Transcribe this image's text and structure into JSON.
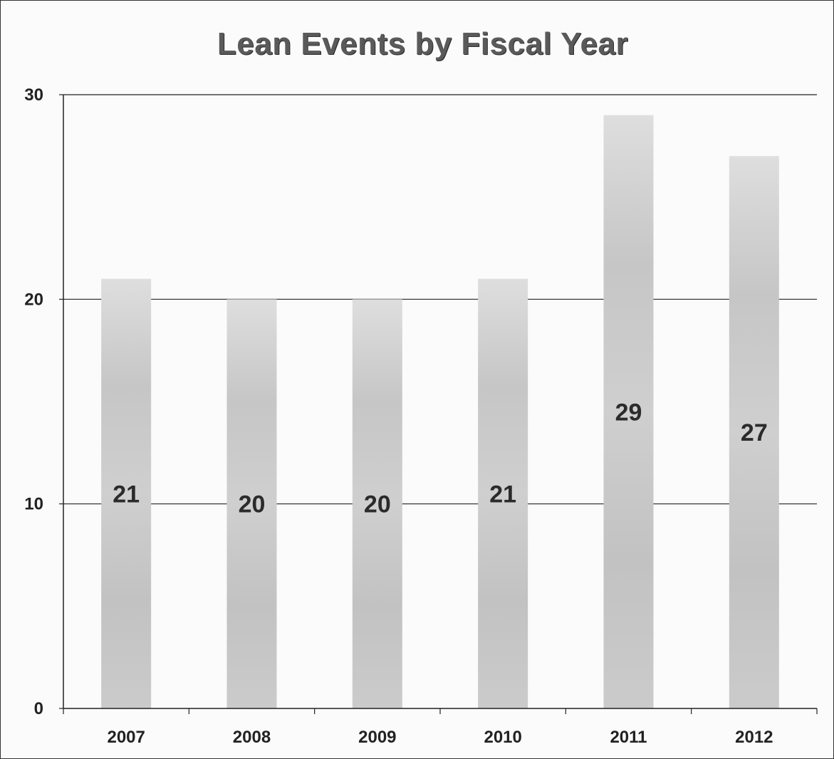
{
  "chart_data": {
    "type": "bar",
    "title": "Lean Events by Fiscal Year",
    "xlabel": "",
    "ylabel": "",
    "categories": [
      "2007",
      "2008",
      "2009",
      "2010",
      "2011",
      "2012"
    ],
    "values": [
      21,
      20,
      20,
      21,
      29,
      27
    ],
    "data_labels": [
      "21",
      "20",
      "20",
      "21",
      "29",
      "27"
    ],
    "ylim": [
      0,
      30
    ],
    "yticks": [
      0,
      10,
      20,
      30
    ],
    "ytick_labels": [
      "0",
      "10",
      "20",
      "30"
    ],
    "grid": "horizontal",
    "legend": "none",
    "bar_color": "#c9c9c9",
    "grid_color": "#222222"
  }
}
